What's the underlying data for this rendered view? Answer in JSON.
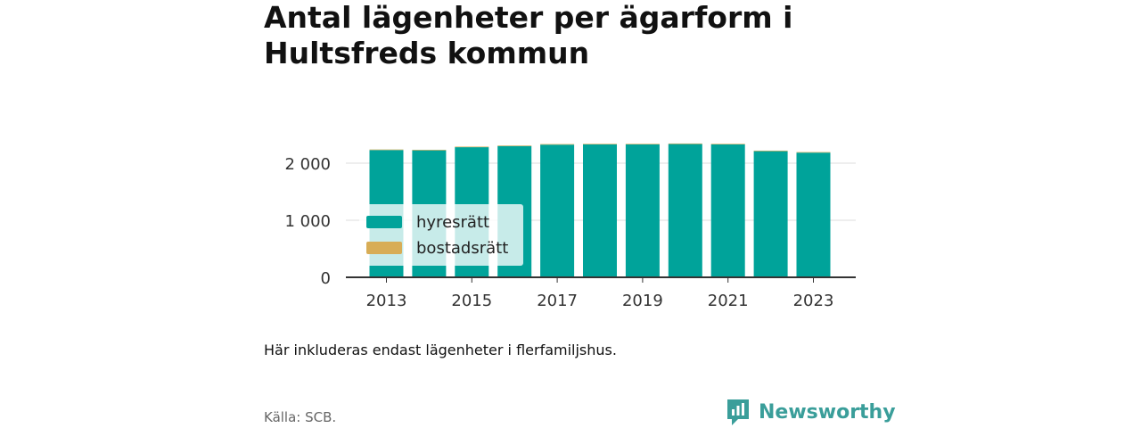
{
  "title": "Antal lägenheter per ägarform i Hultsfreds kommun",
  "note": "Här inkluderas endast lägenheter i flerfamiljshus.",
  "source": "Källa: SCB.",
  "brand": {
    "name": "Newsworthy",
    "icon": "newsworthy-logo-icon",
    "color": "#3a9e9a"
  },
  "colors": {
    "hyresratt": "#00a39a",
    "bostadsratt": "#d8ad56"
  },
  "legend": {
    "placement": "center-left",
    "items": [
      {
        "label": "hyresrätt",
        "color": "#00a39a"
      },
      {
        "label": "bostadsrätt",
        "color": "#d8ad56"
      }
    ]
  },
  "chart_data": {
    "type": "bar",
    "stacked": true,
    "title": "Antal lägenheter per ägarform i Hultsfreds kommun",
    "xlabel": "",
    "ylabel": "",
    "grid": true,
    "ylim": [
      0,
      2250
    ],
    "yticks": [
      0,
      1000,
      2000
    ],
    "ytick_labels": [
      "0",
      "1 000",
      "2 000"
    ],
    "xtick_labels": [
      "2013",
      "2015",
      "2017",
      "2019",
      "2021",
      "2023"
    ],
    "categories": [
      "2013",
      "2014",
      "2015",
      "2016",
      "2017",
      "2018",
      "2019",
      "2020",
      "2021",
      "2022",
      "2023"
    ],
    "series": [
      {
        "name": "hyresrätt",
        "color": "#00a39a",
        "values": [
          2230,
          2225,
          2280,
          2300,
          2325,
          2330,
          2330,
          2335,
          2330,
          2210,
          2185
        ]
      },
      {
        "name": "bostadsrätt",
        "color": "#d8ad56",
        "values": [
          10,
          10,
          10,
          10,
          10,
          10,
          10,
          10,
          10,
          10,
          10
        ]
      }
    ]
  }
}
